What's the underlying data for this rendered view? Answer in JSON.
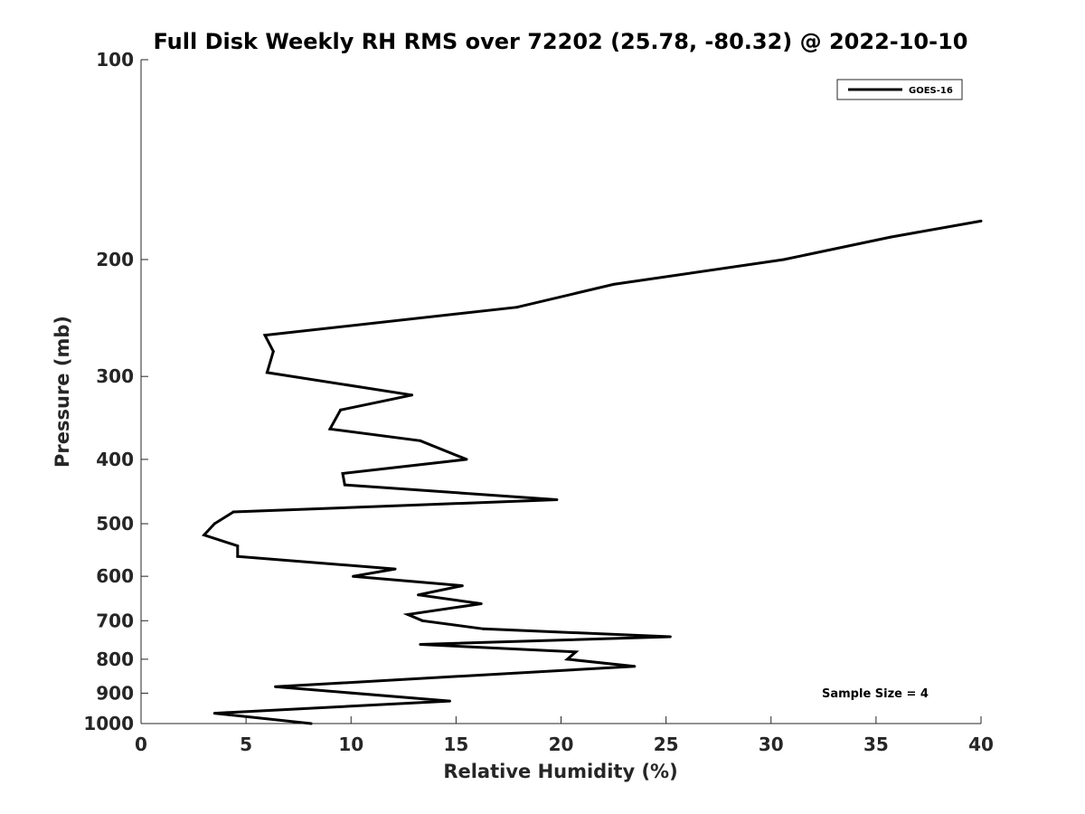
{
  "chart_data": {
    "type": "line",
    "title": "Full Disk Weekly RH RMS over 72202 (25.78, -80.32) @ 2022-10-10",
    "xlabel": "Relative Humidity (%)",
    "ylabel": "Pressure (mb)",
    "xlim": [
      0,
      40
    ],
    "ylim": [
      100,
      1000
    ],
    "yscale": "log",
    "y_reversed": true,
    "grid": false,
    "legend_position": "top-right",
    "x_ticks": [
      "0",
      "5",
      "10",
      "15",
      "20",
      "25",
      "30",
      "35",
      "40"
    ],
    "y_ticks": [
      "100",
      "200",
      "300",
      "400",
      "500",
      "600",
      "700",
      "800",
      "900",
      "1000"
    ],
    "annotation": "Sample Size = 4",
    "series": [
      {
        "name": "GOES-16",
        "color": "#000000",
        "points": [
          {
            "x": 40.0,
            "y": 175
          },
          {
            "x": 35.7,
            "y": 185
          },
          {
            "x": 30.6,
            "y": 200
          },
          {
            "x": 22.5,
            "y": 218
          },
          {
            "x": 17.9,
            "y": 236
          },
          {
            "x": 5.9,
            "y": 260
          },
          {
            "x": 6.3,
            "y": 275
          },
          {
            "x": 6.0,
            "y": 296
          },
          {
            "x": 12.9,
            "y": 320
          },
          {
            "x": 9.5,
            "y": 337
          },
          {
            "x": 9.0,
            "y": 360
          },
          {
            "x": 13.3,
            "y": 375
          },
          {
            "x": 15.5,
            "y": 400
          },
          {
            "x": 9.6,
            "y": 420
          },
          {
            "x": 9.7,
            "y": 437
          },
          {
            "x": 19.8,
            "y": 460
          },
          {
            "x": 4.4,
            "y": 480
          },
          {
            "x": 3.5,
            "y": 500
          },
          {
            "x": 3.0,
            "y": 520
          },
          {
            "x": 4.6,
            "y": 540
          },
          {
            "x": 4.6,
            "y": 560
          },
          {
            "x": 12.1,
            "y": 585
          },
          {
            "x": 10.1,
            "y": 600
          },
          {
            "x": 15.3,
            "y": 620
          },
          {
            "x": 13.2,
            "y": 640
          },
          {
            "x": 16.2,
            "y": 660
          },
          {
            "x": 12.7,
            "y": 685
          },
          {
            "x": 13.4,
            "y": 700
          },
          {
            "x": 16.3,
            "y": 720
          },
          {
            "x": 25.2,
            "y": 740
          },
          {
            "x": 13.3,
            "y": 760
          },
          {
            "x": 20.7,
            "y": 780
          },
          {
            "x": 20.3,
            "y": 800
          },
          {
            "x": 23.5,
            "y": 820
          },
          {
            "x": 6.4,
            "y": 880
          },
          {
            "x": 14.7,
            "y": 925
          },
          {
            "x": 3.5,
            "y": 965
          },
          {
            "x": 8.1,
            "y": 1000
          }
        ]
      }
    ]
  }
}
